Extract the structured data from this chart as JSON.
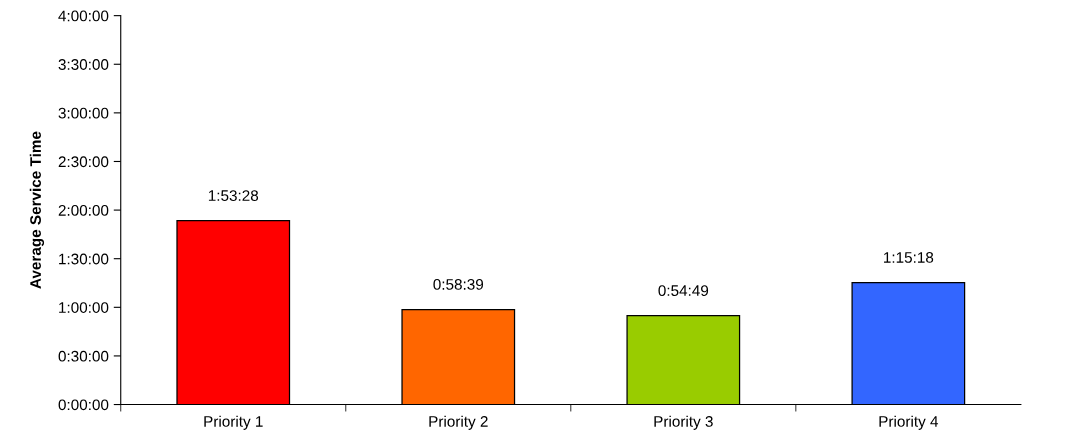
{
  "chart_data": {
    "type": "bar",
    "ylabel": "Average Service Time",
    "categories": [
      "Priority 1",
      "Priority 2",
      "Priority 3",
      "Priority 4"
    ],
    "values": [
      1.891111,
      0.9775,
      0.913611,
      1.255
    ],
    "value_labels": [
      "1:53:28",
      "0:58:39",
      "0:54:49",
      "1:15:18"
    ],
    "colors": [
      "#ff0000",
      "#ff6600",
      "#99cc00",
      "#3366ff"
    ],
    "ylim": [
      0,
      4
    ],
    "yticks": [
      {
        "value": 0,
        "label": "0:00:00"
      },
      {
        "value": 0.5,
        "label": "0:30:00"
      },
      {
        "value": 1,
        "label": "1:00:00"
      },
      {
        "value": 1.5,
        "label": "1:30:00"
      },
      {
        "value": 2,
        "label": "2:00:00"
      },
      {
        "value": 2.5,
        "label": "2:30:00"
      },
      {
        "value": 3,
        "label": "3:00:00"
      },
      {
        "value": 3.5,
        "label": "3:30:00"
      },
      {
        "value": 4,
        "label": "4:00:00"
      }
    ],
    "grid": false,
    "legend": false
  }
}
